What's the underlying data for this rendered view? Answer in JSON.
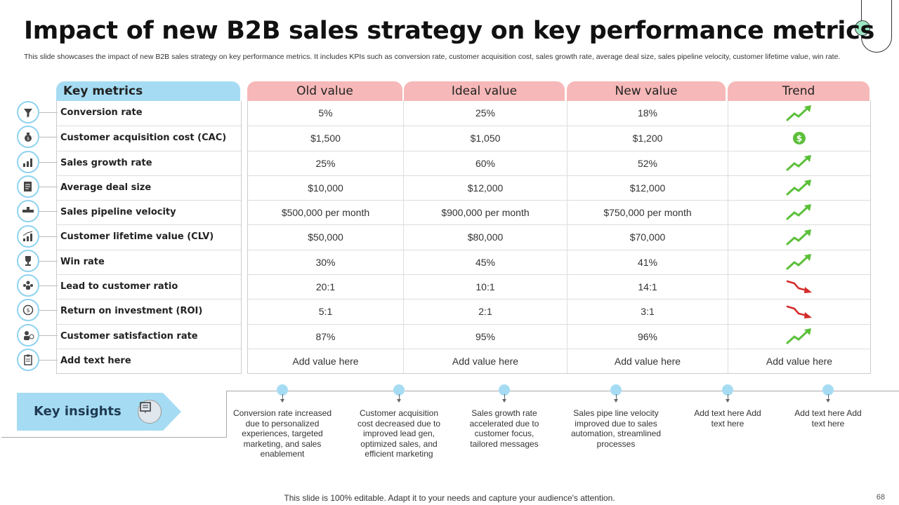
{
  "title": "Impact of new B2B sales strategy on key performance metrics",
  "subtitle": "This slide showcases the impact of new B2B sales strategy on key performance metrics. It includes KPIs such as conversion rate, customer acquisition cost, sales growth rate, average deal size, sales pipeline velocity, customer lifetime value, win rate.",
  "table": {
    "headers": {
      "metrics": "Key metrics",
      "old": "Old value",
      "ideal": "Ideal value",
      "new": "New value",
      "trend": "Trend"
    },
    "rows": [
      {
        "metric": "Conversion rate",
        "icon": "funnel-icon",
        "old": "5%",
        "ideal": "25%",
        "new": "18%",
        "trend": "up"
      },
      {
        "metric": "Customer acquisition cost (CAC)",
        "icon": "money-bag-icon",
        "old": "$1,500",
        "ideal": "$1,050",
        "new": "$1,200",
        "trend": "dollar"
      },
      {
        "metric": "Sales growth rate",
        "icon": "growth-person-icon",
        "old": "25%",
        "ideal": "60%",
        "new": "52%",
        "trend": "up"
      },
      {
        "metric": "Average deal size",
        "icon": "deal-document-icon",
        "old": "$10,000",
        "ideal": "$12,000",
        "new": "$12,000",
        "trend": "up"
      },
      {
        "metric": "Sales pipeline velocity",
        "icon": "pipeline-icon",
        "old": "$500,000 per month",
        "ideal": "$900,000 per month",
        "new": "$750,000 per month",
        "trend": "up"
      },
      {
        "metric": "Customer lifetime value (CLV)",
        "icon": "bar-growth-icon",
        "old": "$50,000",
        "ideal": "$80,000",
        "new": "$70,000",
        "trend": "up"
      },
      {
        "metric": "Win rate",
        "icon": "trophy-icon",
        "old": "30%",
        "ideal": "45%",
        "new": "41%",
        "trend": "up"
      },
      {
        "metric": "Lead to customer ratio",
        "icon": "people-group-icon",
        "old": "20:1",
        "ideal": "10:1",
        "new": "14:1",
        "trend": "down"
      },
      {
        "metric": "Return on investment (ROI)",
        "icon": "roi-coin-icon",
        "old": "5:1",
        "ideal": "2:1",
        "new": "3:1",
        "trend": "down"
      },
      {
        "metric": "Customer satisfaction rate",
        "icon": "satisfied-customer-icon",
        "old": "87%",
        "ideal": "95%",
        "new": "96%",
        "trend": "up"
      },
      {
        "metric": "Add text here",
        "icon": "clipboard-icon",
        "old": "Add value here",
        "ideal": "Add value here",
        "new": "Add value here",
        "trend": "Add value here"
      }
    ]
  },
  "insights": {
    "label": "Key insights",
    "items": [
      "Conversion rate increased due to personalized experiences, targeted marketing, and sales enablement",
      "Customer acquisition cost decreased due to improved lead gen, optimized sales, and efficient marketing",
      "Sales growth rate accelerated due to customer focus, tailored messages",
      "Sales pipe line velocity improved due to sales automation, streamlined processes",
      "Add text here Add text here",
      "Add text here Add text here"
    ]
  },
  "footer": "This slide is 100% editable. Adapt it to your needs and capture your audience's attention.",
  "page_number": "68",
  "colors": {
    "metrics_header": "#a6dcf3",
    "value_header": "#f6b8b8",
    "trend_up": "#5cbf3a",
    "trend_down": "#d42a2a"
  }
}
